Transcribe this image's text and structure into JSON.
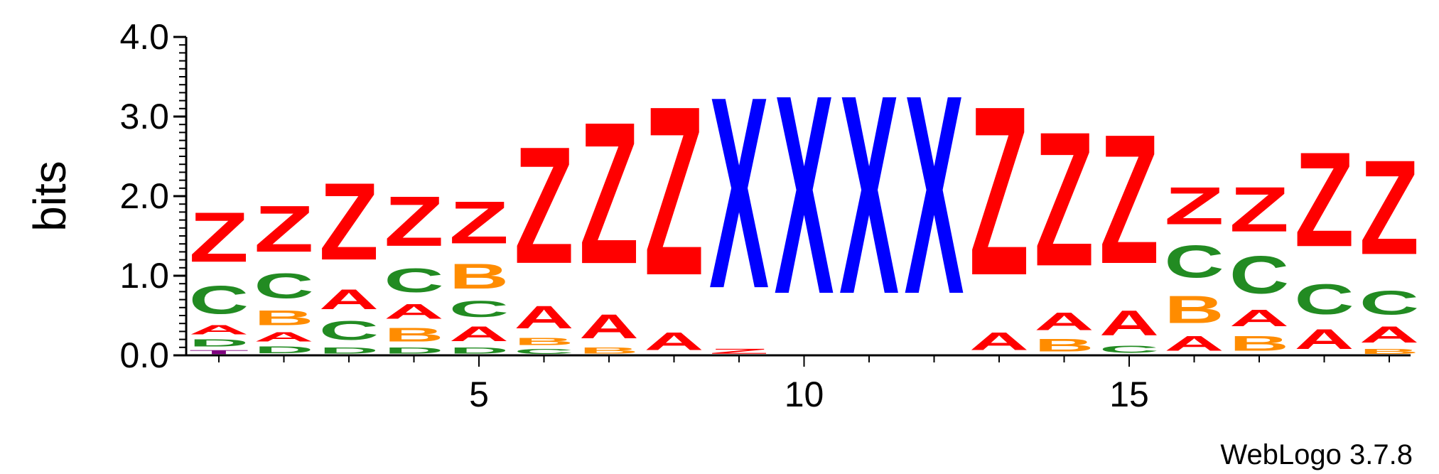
{
  "chart_data": {
    "type": "sequence-logo",
    "ylabel": "bits",
    "ylim": [
      0,
      4.0
    ],
    "yticks": [
      "0.0",
      "1.0",
      "2.0",
      "3.0",
      "4.0"
    ],
    "xticks": [
      "5",
      "10",
      "15"
    ],
    "positions": [
      1,
      2,
      3,
      4,
      5,
      6,
      7,
      8,
      9,
      10,
      11,
      12,
      13,
      14,
      15,
      16,
      17,
      18,
      19
    ],
    "colors": {
      "A": "#ff0000",
      "Z": "#ff0000",
      "B": "#ff8c00",
      "C": "#228b22",
      "D": "#228b22",
      "X": "#0000ff",
      "T": "#800080"
    },
    "stacks": [
      [
        {
          "letter": "T",
          "height": 0.08
        },
        {
          "letter": "D",
          "height": 0.15
        },
        {
          "letter": "A",
          "height": 0.18
        },
        {
          "letter": "C",
          "height": 0.57
        },
        {
          "letter": "Z",
          "height": 1.0
        }
      ],
      [
        {
          "letter": "D",
          "height": 0.14
        },
        {
          "letter": "A",
          "height": 0.18
        },
        {
          "letter": "B",
          "height": 0.3
        },
        {
          "letter": "C",
          "height": 0.5
        },
        {
          "letter": "Z",
          "height": 0.93
        }
      ],
      [
        {
          "letter": "D",
          "height": 0.12
        },
        {
          "letter": "C",
          "height": 0.38
        },
        {
          "letter": "A",
          "height": 0.4
        },
        {
          "letter": "Z",
          "height": 1.55
        }
      ],
      [
        {
          "letter": "D",
          "height": 0.12
        },
        {
          "letter": "B",
          "height": 0.28
        },
        {
          "letter": "A",
          "height": 0.3
        },
        {
          "letter": "C",
          "height": 0.48
        },
        {
          "letter": "Z",
          "height": 1.0
        }
      ],
      [
        {
          "letter": "D",
          "height": 0.12
        },
        {
          "letter": "A",
          "height": 0.3
        },
        {
          "letter": "C",
          "height": 0.32
        },
        {
          "letter": "B",
          "height": 0.5
        },
        {
          "letter": "Z",
          "height": 0.85
        }
      ],
      [
        {
          "letter": "C",
          "height": 0.1
        },
        {
          "letter": "B",
          "height": 0.15
        },
        {
          "letter": "A",
          "height": 0.45
        },
        {
          "letter": "Z",
          "height": 2.35
        }
      ],
      [
        {
          "letter": "B",
          "height": 0.12
        },
        {
          "letter": "A",
          "height": 0.48
        },
        {
          "letter": "Z",
          "height": 2.85
        }
      ],
      [
        {
          "letter": "A",
          "height": 0.35
        },
        {
          "letter": "Z",
          "height": 3.4
        }
      ],
      [
        {
          "letter": "Z",
          "height": 0.1
        },
        {
          "letter": "X",
          "height": 3.85
        }
      ],
      [
        {
          "letter": "X",
          "height": 4.0
        }
      ],
      [
        {
          "letter": "X",
          "height": 4.0
        }
      ],
      [
        {
          "letter": "X",
          "height": 4.0
        }
      ],
      [
        {
          "letter": "A",
          "height": 0.35
        },
        {
          "letter": "Z",
          "height": 3.4
        }
      ],
      [
        {
          "letter": "B",
          "height": 0.25
        },
        {
          "letter": "A",
          "height": 0.35
        },
        {
          "letter": "Z",
          "height": 2.7
        }
      ],
      [
        {
          "letter": "C",
          "height": 0.15
        },
        {
          "letter": "A",
          "height": 0.5
        },
        {
          "letter": "Z",
          "height": 2.6
        }
      ],
      [
        {
          "letter": "A",
          "height": 0.3
        },
        {
          "letter": "B",
          "height": 0.55
        },
        {
          "letter": "C",
          "height": 0.65
        },
        {
          "letter": "Z",
          "height": 0.75
        }
      ],
      [
        {
          "letter": "B",
          "height": 0.3
        },
        {
          "letter": "A",
          "height": 0.33
        },
        {
          "letter": "C",
          "height": 0.75
        },
        {
          "letter": "Z",
          "height": 0.9
        }
      ],
      [
        {
          "letter": "A",
          "height": 0.4
        },
        {
          "letter": "C",
          "height": 0.6
        },
        {
          "letter": "Z",
          "height": 1.9
        }
      ],
      [
        {
          "letter": "B",
          "height": 0.1
        },
        {
          "letter": "A",
          "height": 0.32
        },
        {
          "letter": "C",
          "height": 0.48
        },
        {
          "letter": "Z",
          "height": 1.9
        }
      ]
    ]
  },
  "credit": "WebLogo 3.7.8"
}
